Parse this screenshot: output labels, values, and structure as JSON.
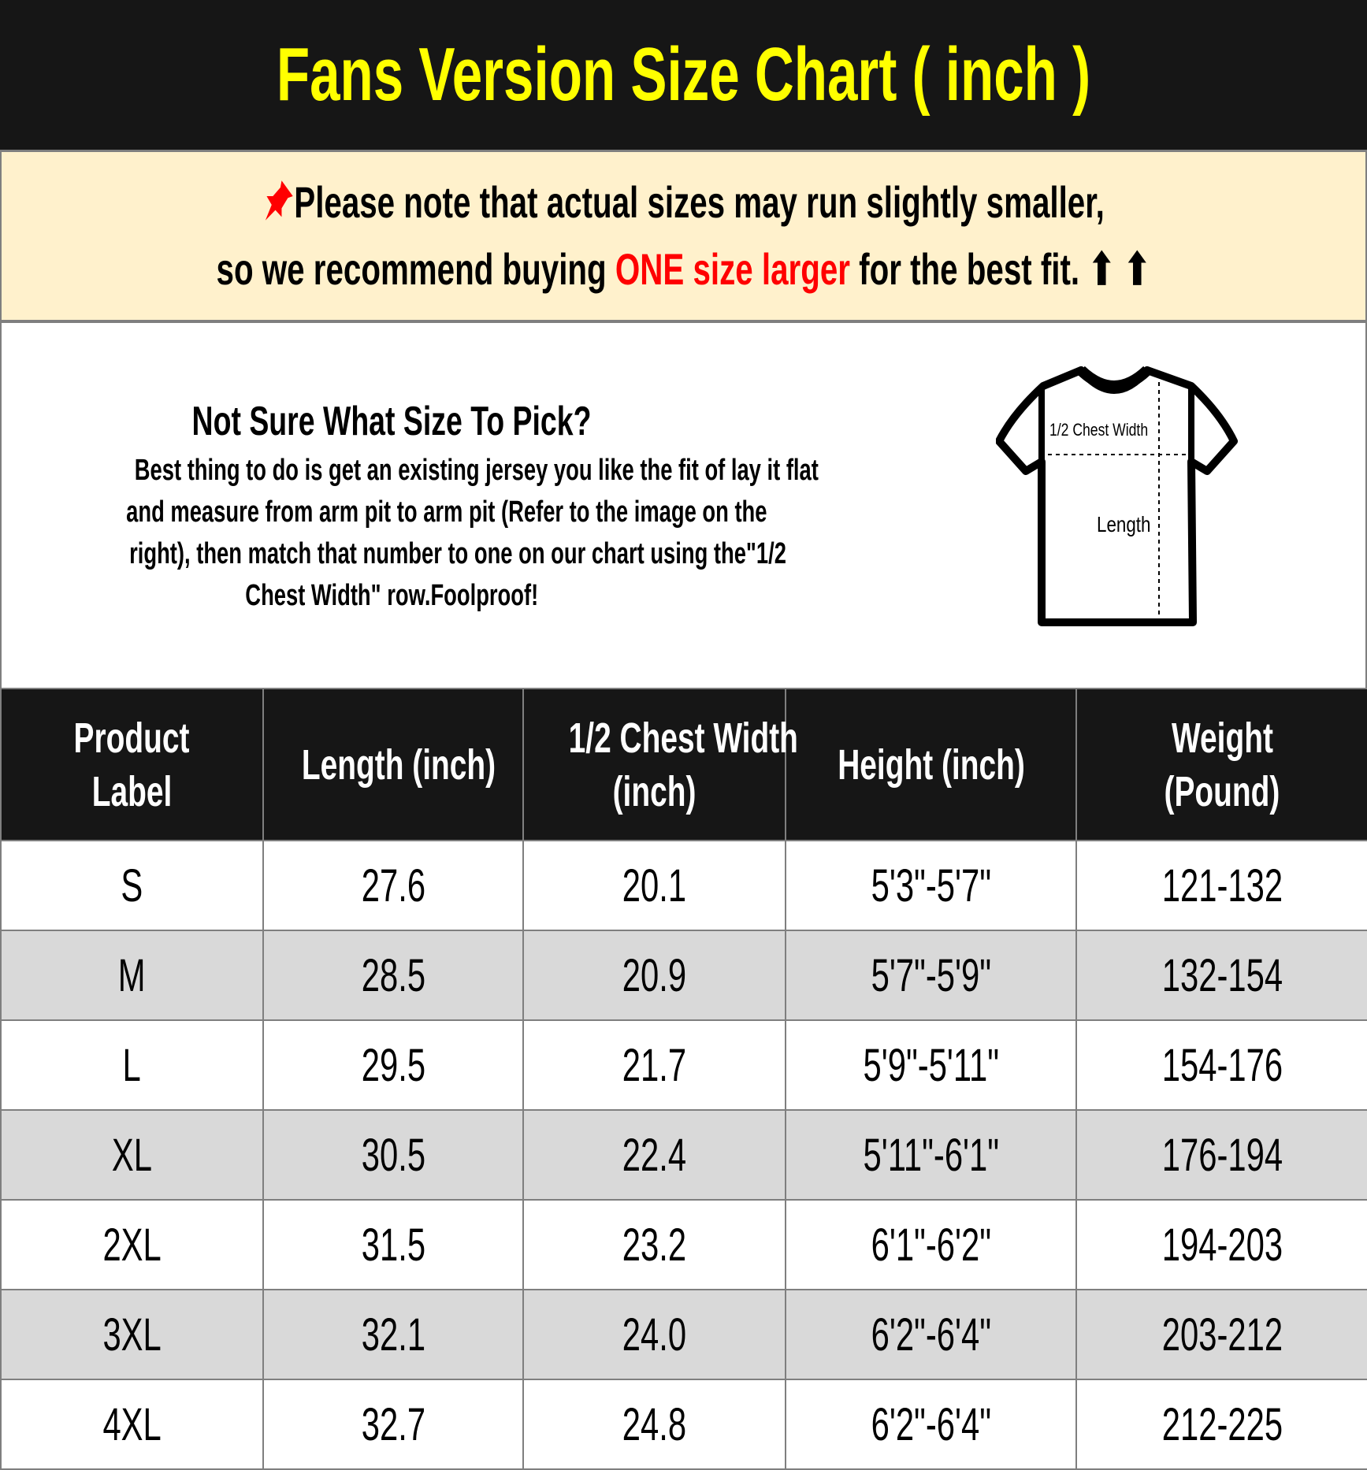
{
  "title": "Fans Version Size Chart ( inch )",
  "note": {
    "line1": "Please note that actual sizes may run slightly smaller,",
    "line2_pre": "so we recommend buying ",
    "line2_highlight": "ONE size larger",
    "line2_post": " for the best fit.",
    "arrows": "⬆ ⬆",
    "pin_icon": "pushpin-icon",
    "highlight_color": "#ff0000"
  },
  "info": {
    "title": "Not Sure What Size To Pick?",
    "lines": [
      "Best thing to do is get an existing jersey you like the fit of lay it flat",
      "and measure from arm pit to arm pit (Refer to the image on the",
      "right), then match that number to one on our chart using the\"1/2",
      "Chest Width\" row.Foolproof!"
    ],
    "diagram": {
      "chest_label": "1/2 Chest Width",
      "length_label": "Length"
    }
  },
  "table": {
    "headers": [
      [
        "Product",
        "Label"
      ],
      [
        "Length (inch)"
      ],
      [
        "1/2 Chest Width",
        "(inch)"
      ],
      [
        "Height (inch)"
      ],
      [
        "Weight",
        "(Pound)"
      ]
    ],
    "rows": [
      [
        "S",
        "27.6",
        "20.1",
        "5'3\"-5'7\"",
        "121-132"
      ],
      [
        "M",
        "28.5",
        "20.9",
        "5'7\"-5'9\"",
        "132-154"
      ],
      [
        "L",
        "29.5",
        "21.7",
        "5'9\"-5'11\"",
        "154-176"
      ],
      [
        "XL",
        "30.5",
        "22.4",
        "5'11\"-6'1\"",
        "176-194"
      ],
      [
        "2XL",
        "31.5",
        "23.2",
        "6'1\"-6'2\"",
        "194-203"
      ],
      [
        "3XL",
        "32.1",
        "24.0",
        "6'2\"-6'4\"",
        "203-212"
      ],
      [
        "4XL",
        "32.7",
        "24.8",
        "6'2\"-6'4\"",
        "212-225"
      ]
    ]
  }
}
